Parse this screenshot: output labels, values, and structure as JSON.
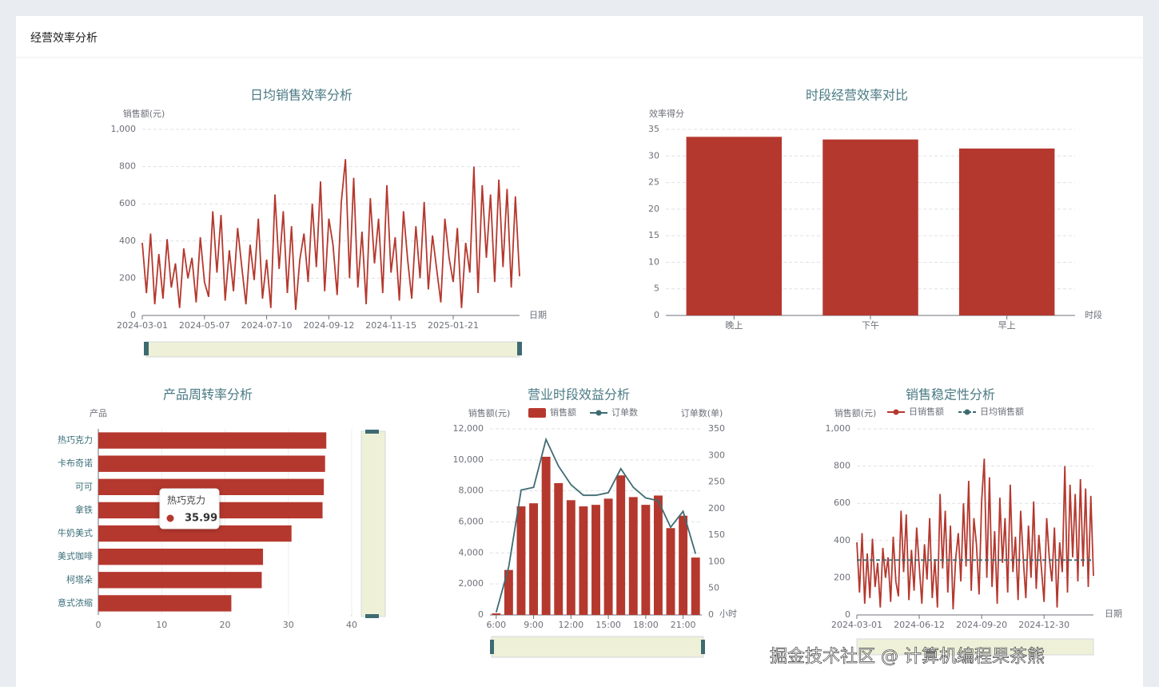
{
  "title": "经营效率分析",
  "watermark": "掘金技术社区 @ 计算机编程果茶熊",
  "chart_data": [
    {
      "type": "line",
      "title": "日均销售效率分析",
      "y_axis_name": "销售额(元)",
      "x_axis_name": "日期",
      "color": "#b5382e",
      "grid": true,
      "ylim": [
        0,
        1000
      ],
      "yticks": [
        0,
        200,
        400,
        600,
        800,
        {
          "value": 1000,
          "label": "1,000"
        }
      ],
      "categories": [
        "2024-03-01",
        null,
        null,
        null,
        null,
        null,
        null,
        null,
        null,
        null,
        null,
        null,
        null,
        null,
        null,
        "2024-05-07",
        null,
        null,
        null,
        null,
        null,
        null,
        null,
        null,
        null,
        null,
        null,
        null,
        null,
        null,
        "2024-07-10",
        null,
        null,
        null,
        null,
        null,
        null,
        null,
        null,
        null,
        null,
        null,
        null,
        null,
        null,
        "2024-09-12",
        null,
        null,
        null,
        null,
        null,
        null,
        null,
        null,
        null,
        null,
        null,
        null,
        null,
        null,
        "2024-11-15",
        null,
        null,
        null,
        null,
        null,
        null,
        null,
        null,
        null,
        null,
        null,
        null,
        null,
        null,
        "2025-01-21",
        null,
        null,
        null,
        null,
        null,
        null,
        null,
        null,
        null,
        null,
        null,
        null,
        null,
        null,
        null,
        null
      ],
      "values": [
        390,
        120,
        440,
        60,
        330,
        90,
        410,
        150,
        280,
        40,
        360,
        200,
        310,
        70,
        420,
        180,
        100,
        560,
        230,
        540,
        80,
        350,
        130,
        470,
        260,
        60,
        380,
        190,
        520,
        90,
        300,
        40,
        650,
        250,
        560,
        120,
        480,
        30,
        300,
        440,
        180,
        600,
        260,
        720,
        130,
        520,
        380,
        110,
        610,
        840,
        200,
        740,
        150,
        450,
        60,
        630,
        280,
        520,
        120,
        700,
        230,
        420,
        80,
        560,
        300,
        90,
        480,
        200,
        610,
        140,
        430,
        250,
        70,
        520,
        310,
        180,
        470,
        40,
        390,
        230,
        800,
        120,
        700,
        310,
        650,
        180,
        730,
        260,
        680,
        150,
        640,
        210
      ]
    },
    {
      "type": "bar",
      "title": "时段经营效率对比",
      "y_axis_name": "效率得分",
      "x_axis_name": "时段",
      "color": "#b5382e",
      "grid": true,
      "ylim": [
        0,
        35
      ],
      "yticks": [
        0,
        5,
        10,
        15,
        20,
        25,
        30,
        35
      ],
      "categories": [
        "晚上",
        "下午",
        "早上"
      ],
      "values": [
        33.6,
        33.1,
        31.4
      ]
    },
    {
      "type": "bar",
      "horizontal": true,
      "title": "产品周转率分析",
      "y_axis_name": "产品",
      "color": "#b5382e",
      "grid": true,
      "xlim": [
        0,
        40
      ],
      "xticks": [
        0,
        10,
        20,
        30,
        40
      ],
      "categories": [
        "热巧克力",
        "卡布奇诺",
        "可可",
        "拿铁",
        "牛奶美式",
        "美式咖啡",
        "柯塔朵",
        "意式浓缩"
      ],
      "values": [
        35.99,
        35.8,
        35.6,
        35.4,
        30.5,
        26,
        25.8,
        21
      ],
      "tooltip": {
        "label": "热巧克力",
        "value": 35.99
      }
    },
    {
      "type": "bar",
      "title": "营业时段效益分析",
      "y_axis_name": "销售额(元)",
      "y2_axis_name": "订单数(单)",
      "x_axis_name": "小时",
      "grid": true,
      "ylim": [
        0,
        12000
      ],
      "yticks": [
        0,
        {
          "value": 2000,
          "label": "2,000"
        },
        {
          "value": 4000,
          "label": "4,000"
        },
        {
          "value": 6000,
          "label": "6,000"
        },
        {
          "value": 8000,
          "label": "8,000"
        },
        {
          "value": 10000,
          "label": "10,000"
        },
        {
          "value": 12000,
          "label": "12,000"
        }
      ],
      "y2lim": [
        0,
        350
      ],
      "y2ticks": [
        0,
        50,
        100,
        150,
        200,
        250,
        300,
        350
      ],
      "categories": [
        "6:00",
        null,
        null,
        "9:00",
        null,
        null,
        "12:00",
        null,
        null,
        "15:00",
        null,
        null,
        "18:00",
        null,
        null,
        "21:00",
        null
      ],
      "series": [
        {
          "name": "销售额",
          "type": "bar",
          "color": "#b5382e",
          "values": [
            100,
            2900,
            7000,
            7200,
            10200,
            8500,
            7400,
            7000,
            7100,
            7500,
            9000,
            7600,
            7100,
            7700,
            5600,
            6400,
            3700
          ]
        },
        {
          "name": "订单数",
          "type": "line",
          "axis": "y2",
          "color": "#3e6b72",
          "values": [
            5,
            90,
            235,
            240,
            330,
            280,
            245,
            225,
            225,
            230,
            275,
            240,
            220,
            215,
            165,
            195,
            115
          ]
        }
      ]
    },
    {
      "type": "line",
      "title": "销售稳定性分析",
      "y_axis_name": "销售额(元)",
      "x_axis_name": "日期",
      "grid": true,
      "ylim": [
        0,
        1000
      ],
      "yticks": [
        0,
        200,
        400,
        600,
        800,
        {
          "value": 1000,
          "label": "1,000"
        }
      ],
      "categories": [
        "2024-03-01",
        null,
        null,
        null,
        null,
        null,
        null,
        null,
        null,
        null,
        null,
        null,
        null,
        null,
        null,
        null,
        null,
        null,
        null,
        null,
        null,
        null,
        null,
        null,
        "2024-06-12",
        null,
        null,
        null,
        null,
        null,
        null,
        null,
        null,
        null,
        null,
        null,
        null,
        null,
        null,
        null,
        null,
        null,
        null,
        null,
        null,
        null,
        null,
        null,
        "2024-09-20",
        null,
        null,
        null,
        null,
        null,
        null,
        null,
        null,
        null,
        null,
        null,
        null,
        null,
        null,
        null,
        null,
        null,
        null,
        null,
        null,
        null,
        null,
        null,
        "2024-12-30",
        null,
        null,
        null,
        null,
        null,
        null,
        null,
        null,
        null,
        null,
        null,
        null,
        null,
        null,
        null,
        null,
        null,
        null,
        null
      ],
      "series": [
        {
          "name": "日销售额",
          "type": "line",
          "color": "#b5382e",
          "values": [
            390,
            120,
            440,
            60,
            330,
            90,
            410,
            150,
            280,
            40,
            360,
            200,
            310,
            70,
            420,
            180,
            100,
            560,
            230,
            540,
            80,
            350,
            130,
            470,
            260,
            60,
            380,
            190,
            520,
            90,
            300,
            40,
            650,
            250,
            560,
            120,
            480,
            30,
            300,
            440,
            180,
            600,
            260,
            720,
            130,
            520,
            380,
            110,
            610,
            840,
            200,
            740,
            150,
            450,
            60,
            630,
            280,
            520,
            120,
            700,
            230,
            420,
            80,
            560,
            300,
            90,
            480,
            200,
            610,
            140,
            430,
            250,
            70,
            520,
            310,
            180,
            470,
            40,
            390,
            230,
            800,
            120,
            700,
            310,
            650,
            180,
            730,
            260,
            680,
            150,
            640,
            210
          ]
        },
        {
          "name": "日均销售额",
          "type": "line",
          "line_style": "dashed",
          "color": "#3e6b72",
          "values": [
            295,
            295,
            295,
            295,
            295,
            295,
            295,
            295,
            295,
            295,
            295,
            295,
            295,
            295,
            295,
            295,
            295,
            295,
            295,
            295,
            295,
            295,
            295,
            295,
            295,
            295,
            295,
            295,
            295,
            295,
            295,
            295,
            295,
            295,
            295,
            295,
            295,
            295,
            295,
            295,
            295,
            295,
            295,
            295,
            295,
            295,
            295,
            295,
            295,
            295,
            295,
            295,
            295,
            295,
            295,
            295,
            295,
            295,
            295,
            295,
            295,
            295,
            295,
            295,
            295,
            295,
            295,
            295,
            295,
            295,
            295,
            295,
            295,
            295,
            295,
            295,
            295,
            295,
            295,
            295,
            295,
            295,
            295,
            295,
            295,
            295,
            295,
            295,
            295,
            295,
            295,
            295
          ]
        }
      ]
    }
  ]
}
